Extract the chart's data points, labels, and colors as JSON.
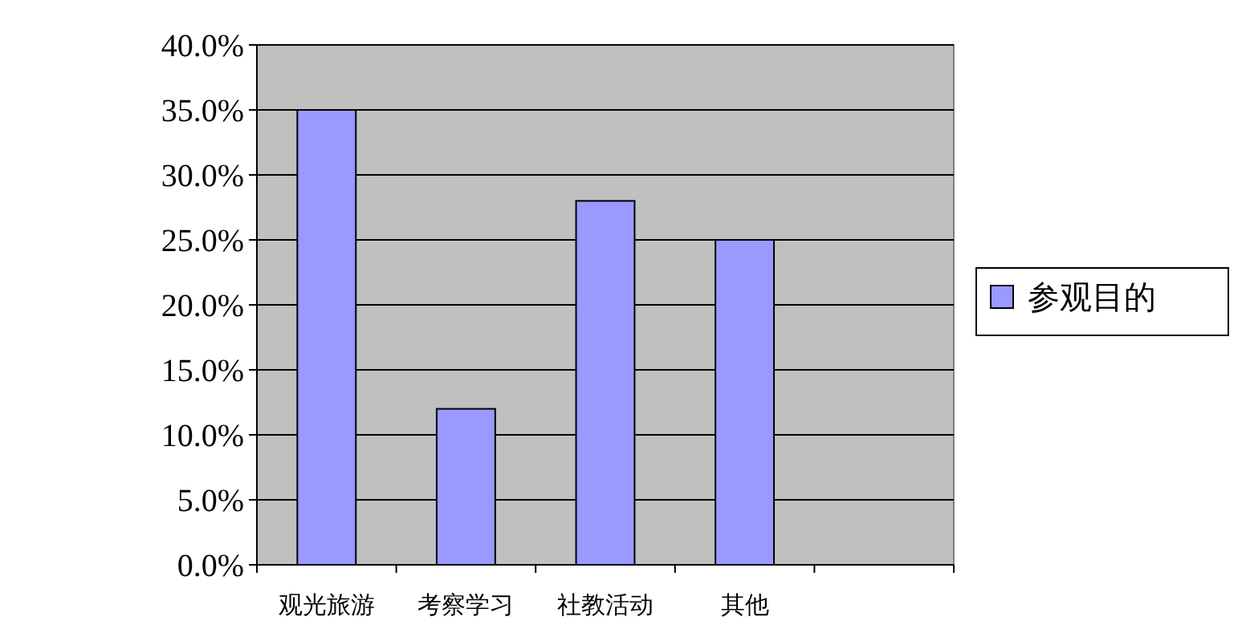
{
  "chart_data": {
    "type": "bar",
    "categories": [
      "观光旅游",
      "考察学习",
      "社教活动",
      "其他",
      null
    ],
    "series": [
      {
        "name": "参观目的",
        "color": "#9999ff",
        "values": [
          35,
          12,
          28,
          25,
          null
        ]
      }
    ],
    "ylim": [
      0,
      40
    ],
    "yticks": [
      {
        "value": 0,
        "label": "0.0%"
      },
      {
        "value": 5,
        "label": "5.0%"
      },
      {
        "value": 10,
        "label": "10.0%"
      },
      {
        "value": 15,
        "label": "15.0%"
      },
      {
        "value": 20,
        "label": "20.0%"
      },
      {
        "value": 25,
        "label": "25.0%"
      },
      {
        "value": 30,
        "label": "30.0%"
      },
      {
        "value": 35,
        "label": "35.0%"
      },
      {
        "value": 40,
        "label": "40.0%"
      }
    ],
    "grid": "y",
    "legend": "right"
  }
}
